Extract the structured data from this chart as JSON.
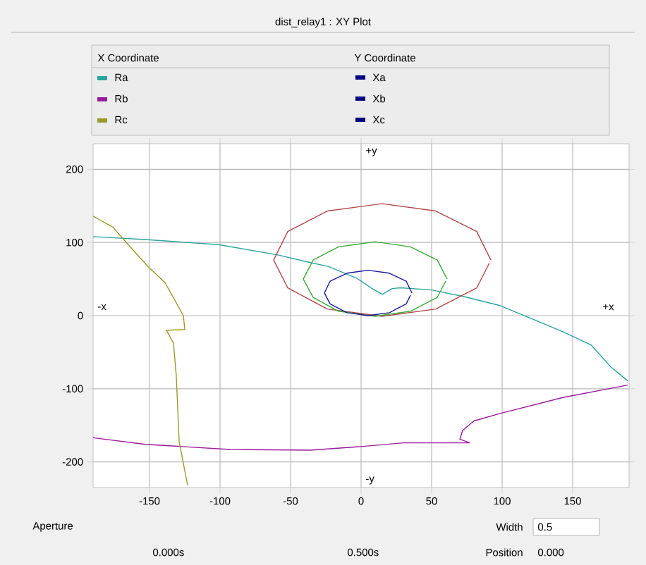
{
  "chart_data": {
    "type": "line",
    "title": "dist_relay1 : XY Plot",
    "xlim": [
      -190,
      190
    ],
    "ylim": [
      -235,
      235
    ],
    "xticks": [
      -150,
      -100,
      -50,
      0,
      50,
      100,
      150
    ],
    "yticks": [
      -200,
      -100,
      0,
      100,
      200
    ],
    "grid": true,
    "legend": "top",
    "annotations": [
      "X Coordinate",
      "Y Coordinate",
      "Xa",
      "Xb",
      "Xc",
      "+y",
      "-y",
      "+x",
      "-x",
      "Aperture",
      "Width",
      "0.5",
      "0.000s",
      "0.500s",
      "Position",
      "0.000"
    ],
    "series": [
      {
        "name": "Ra",
        "color": "#2aa3a0",
        "x": [
          -190,
          -153,
          -101,
          -59,
          -37,
          -23,
          -3,
          7,
          15,
          22,
          28,
          50,
          73,
          98,
          117,
          143,
          163,
          177,
          189
        ],
        "values": [
          108,
          104,
          97,
          83,
          73,
          67,
          51,
          38,
          29,
          37,
          38,
          35,
          26,
          14,
          -1,
          -22,
          -40,
          -70,
          -89
        ]
      },
      {
        "name": "Rb",
        "color": "#9b1a9b",
        "x": [
          -190,
          -153,
          -93,
          -36,
          0,
          30,
          77,
          70,
          72,
          80,
          100,
          143,
          189
        ],
        "values": [
          -167,
          -176,
          -183,
          -184,
          -179,
          -174,
          -174,
          -169,
          -157,
          -144,
          -133,
          -112,
          -95
        ]
      },
      {
        "name": "Rc",
        "color": "#9a9a2a",
        "x": [
          -190,
          -176,
          -166,
          -151,
          -139,
          -126,
          -125,
          -138,
          -133,
          -131,
          -129,
          -123
        ],
        "values": [
          136,
          121,
          99,
          67,
          45,
          0,
          -19,
          -20,
          -38,
          -83,
          -172,
          -232
        ]
      },
      {
        "color": "#b04848",
        "x": [
          92,
          82,
          53,
          15,
          -24,
          -52,
          -62,
          -52,
          -24,
          15,
          53,
          82,
          91
        ],
        "values": [
          76,
          115,
          143,
          153,
          143,
          115,
          76,
          38,
          9,
          -1,
          9,
          38,
          72
        ]
      },
      {
        "color": "#3aaa3a",
        "x": [
          61,
          54,
          35,
          10,
          -16,
          -34,
          -41,
          -34,
          -16,
          10,
          35,
          54,
          60
        ],
        "values": [
          50,
          76,
          94,
          101,
          94,
          76,
          50,
          25,
          6,
          -1,
          6,
          25,
          47
        ]
      },
      {
        "color": "#1a1a9a",
        "x": [
          36,
          32,
          20,
          5,
          -10,
          -22,
          -26,
          -22,
          -10,
          5,
          20,
          32,
          35
        ],
        "values": [
          31,
          47,
          58,
          62,
          58,
          47,
          31,
          16,
          4,
          0,
          4,
          16,
          28
        ]
      }
    ]
  }
}
